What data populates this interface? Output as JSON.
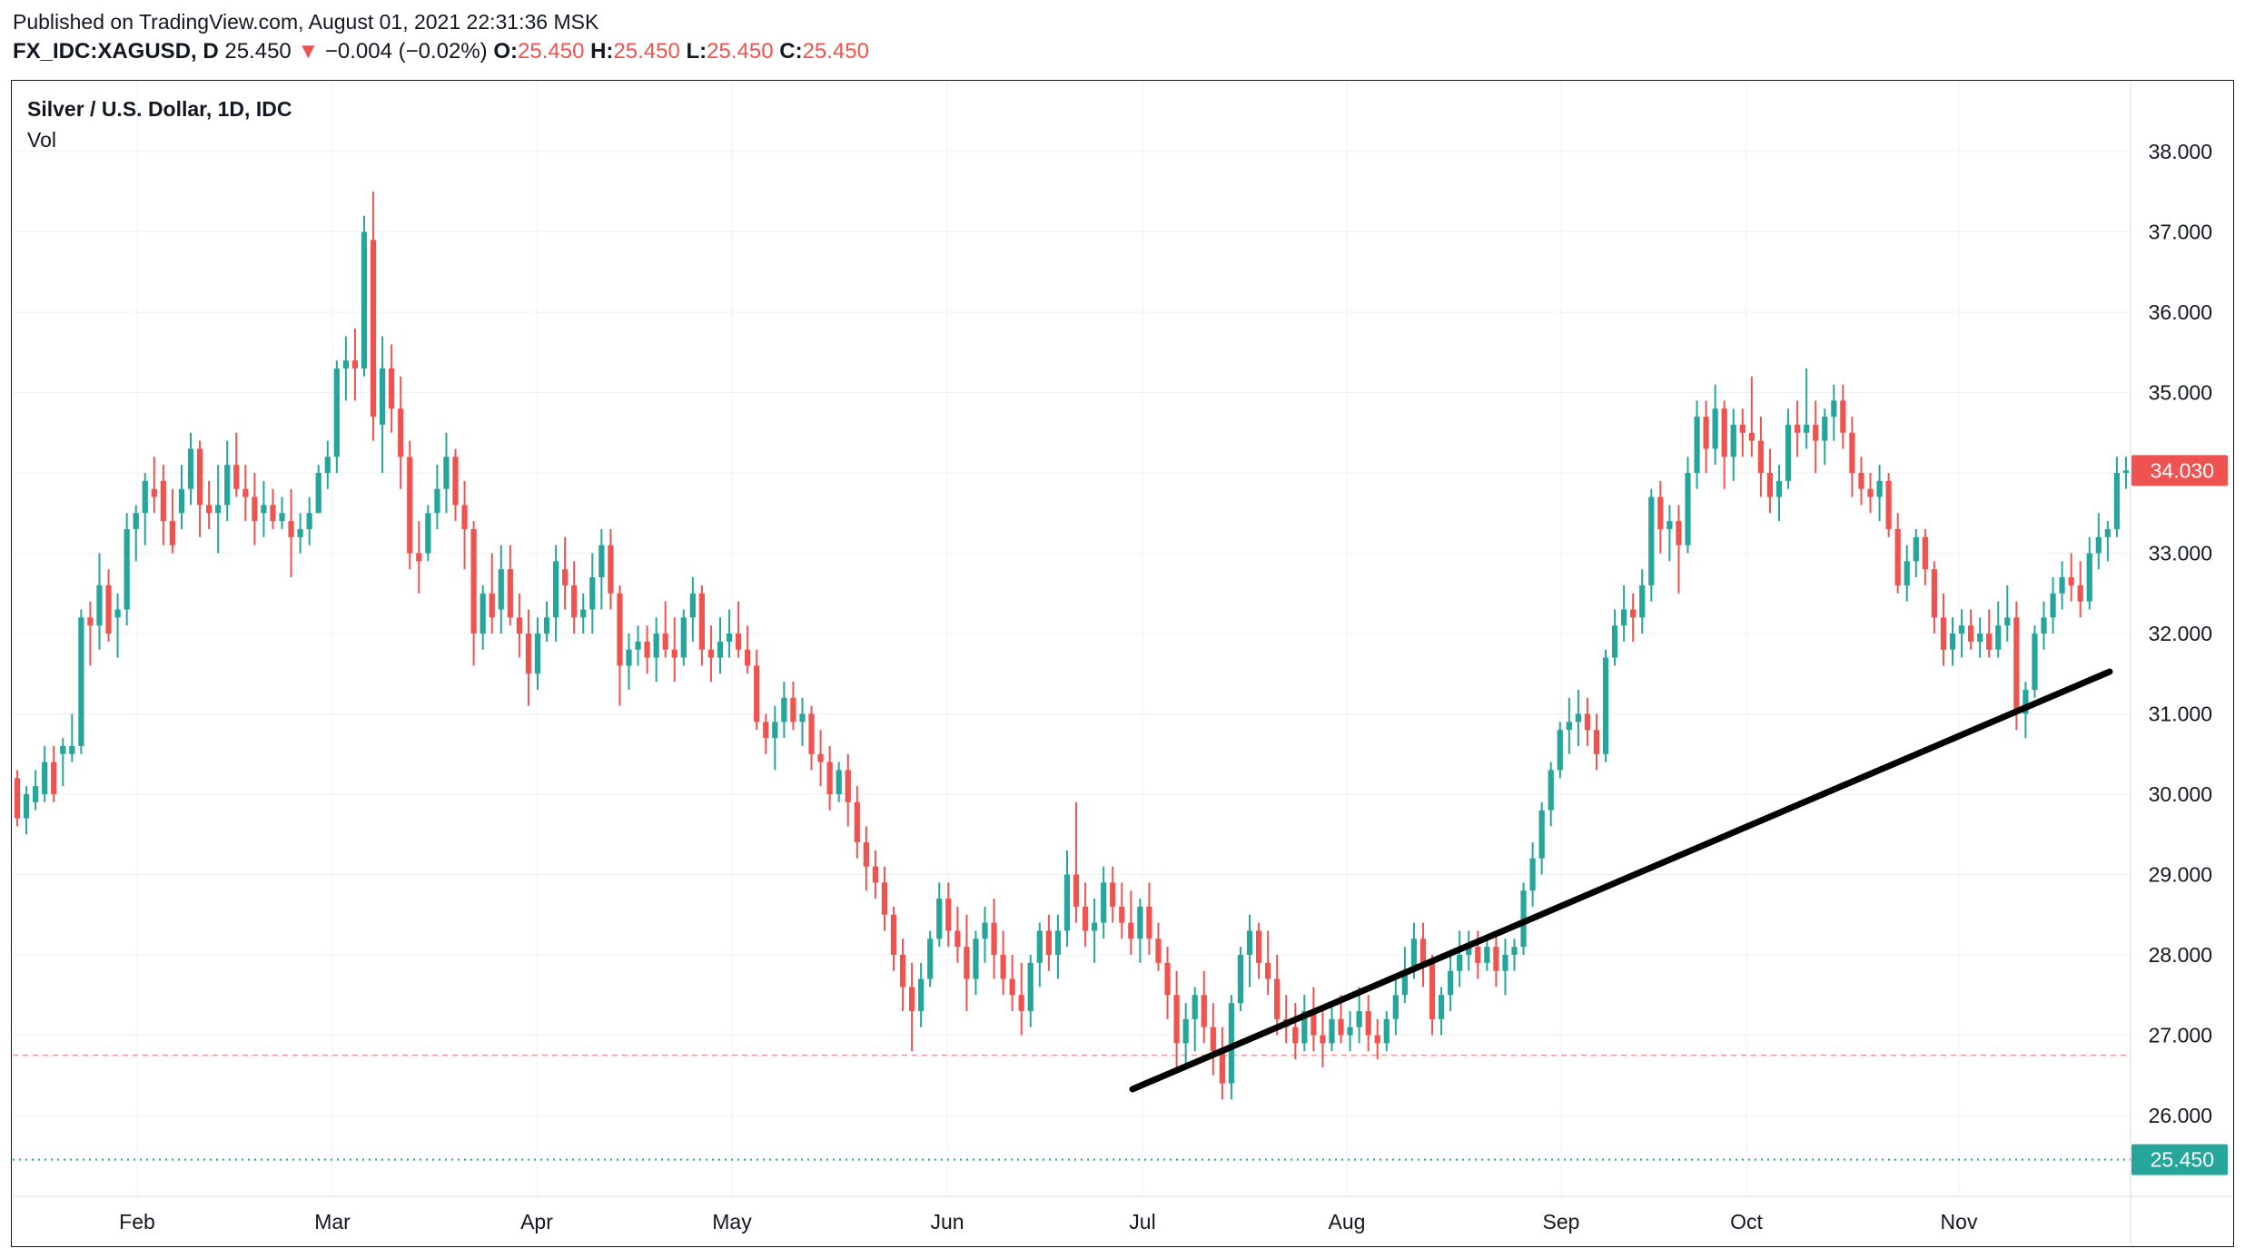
{
  "header": {
    "published": "Published on TradingView.com, August 01, 2021 22:31:36 MSK",
    "symbol": "FX_IDC:XAGUSD, D",
    "last": "25.450",
    "arrow": "▼",
    "change": "−0.004 (−0.02%)",
    "o_label": "O:",
    "o_value": "25.450",
    "h_label": "H:",
    "h_value": "25.450",
    "l_label": "L:",
    "l_value": "25.450",
    "c_label": "C:",
    "c_value": "25.450"
  },
  "legend": {
    "title": "Silver / U.S. Dollar, 1D, IDC",
    "vol": "Vol"
  },
  "colors": {
    "up": "#26a69a",
    "down": "#ef5350",
    "trendline": "#000000",
    "grid": "#eef0f3",
    "last_price_bg": "#26a69a",
    "current_price_bg": "#ef5350"
  },
  "chart_data": {
    "type": "candlestick",
    "y_axis": {
      "ticks": [
        "38.000",
        "37.000",
        "36.000",
        "35.000",
        "34.000",
        "33.000",
        "32.000",
        "31.000",
        "30.000",
        "29.000",
        "28.000",
        "27.000",
        "26.000"
      ],
      "range": [
        25.0,
        38.5
      ]
    },
    "x_axis": {
      "ticks": [
        "Feb",
        "Mar",
        "Apr",
        "May",
        "Jun",
        "Jul",
        "Aug",
        "Sep",
        "Oct",
        "Nov"
      ]
    },
    "price_labels": {
      "current": "34.030",
      "last": "25.450"
    },
    "reference_lines": {
      "dashed_level": 26.75,
      "dotted_level": 25.45
    },
    "trendline": {
      "start": [
        "Jul",
        26.33
      ],
      "end": [
        "late Nov",
        31.5
      ]
    },
    "candles": [
      [
        30.2,
        30.3,
        29.6,
        29.7
      ],
      [
        29.7,
        30.1,
        29.5,
        30.0
      ],
      [
        29.9,
        30.3,
        29.8,
        30.1
      ],
      [
        30.0,
        30.6,
        29.9,
        30.4
      ],
      [
        30.4,
        30.6,
        29.9,
        30.0
      ],
      [
        30.5,
        30.7,
        30.1,
        30.6
      ],
      [
        30.5,
        31.0,
        30.4,
        30.6
      ],
      [
        30.6,
        32.3,
        30.5,
        32.2
      ],
      [
        32.2,
        32.4,
        31.6,
        32.1
      ],
      [
        32.1,
        33.0,
        31.8,
        32.6
      ],
      [
        32.6,
        32.8,
        31.9,
        32.0
      ],
      [
        32.2,
        32.5,
        31.7,
        32.3
      ],
      [
        32.3,
        33.5,
        32.1,
        33.3
      ],
      [
        33.3,
        33.6,
        32.9,
        33.5
      ],
      [
        33.5,
        34.0,
        33.1,
        33.9
      ],
      [
        33.8,
        34.2,
        33.5,
        33.7
      ],
      [
        33.9,
        34.1,
        33.1,
        33.4
      ],
      [
        33.4,
        33.8,
        33.0,
        33.1
      ],
      [
        33.5,
        34.1,
        33.3,
        33.8
      ],
      [
        33.8,
        34.5,
        33.6,
        34.3
      ],
      [
        34.3,
        34.4,
        33.2,
        33.6
      ],
      [
        33.6,
        33.9,
        33.3,
        33.5
      ],
      [
        33.5,
        34.1,
        33.0,
        33.6
      ],
      [
        33.6,
        34.4,
        33.4,
        34.1
      ],
      [
        34.1,
        34.5,
        33.7,
        33.8
      ],
      [
        33.8,
        34.1,
        33.4,
        33.7
      ],
      [
        33.7,
        34.0,
        33.1,
        33.4
      ],
      [
        33.5,
        33.9,
        33.2,
        33.6
      ],
      [
        33.6,
        33.8,
        33.3,
        33.4
      ],
      [
        33.4,
        33.7,
        33.3,
        33.5
      ],
      [
        33.4,
        33.8,
        32.7,
        33.2
      ],
      [
        33.2,
        33.5,
        33.0,
        33.3
      ],
      [
        33.3,
        33.7,
        33.1,
        33.5
      ],
      [
        33.5,
        34.1,
        33.5,
        34.0
      ],
      [
        34.0,
        34.4,
        33.8,
        34.2
      ],
      [
        34.2,
        35.4,
        34.0,
        35.3
      ],
      [
        35.3,
        35.7,
        34.9,
        35.4
      ],
      [
        35.4,
        35.8,
        34.9,
        35.3
      ],
      [
        35.3,
        37.2,
        35.2,
        37.0
      ],
      [
        36.9,
        37.5,
        34.4,
        34.7
      ],
      [
        34.6,
        35.7,
        34.0,
        35.3
      ],
      [
        35.3,
        35.6,
        34.5,
        34.8
      ],
      [
        34.8,
        35.2,
        33.8,
        34.2
      ],
      [
        34.2,
        34.4,
        32.8,
        33.0
      ],
      [
        33.0,
        33.4,
        32.5,
        32.9
      ],
      [
        33.0,
        33.6,
        32.9,
        33.5
      ],
      [
        33.5,
        34.1,
        33.3,
        33.8
      ],
      [
        33.8,
        34.5,
        33.5,
        34.2
      ],
      [
        34.2,
        34.3,
        33.4,
        33.6
      ],
      [
        33.6,
        33.9,
        32.8,
        33.3
      ],
      [
        33.3,
        33.4,
        31.6,
        32.0
      ],
      [
        32.0,
        32.6,
        31.8,
        32.5
      ],
      [
        32.5,
        33.0,
        32.0,
        32.2
      ],
      [
        32.3,
        33.1,
        32.0,
        32.8
      ],
      [
        32.8,
        33.1,
        32.1,
        32.2
      ],
      [
        32.2,
        32.5,
        31.7,
        32.0
      ],
      [
        32.0,
        32.3,
        31.1,
        31.5
      ],
      [
        31.5,
        32.2,
        31.3,
        32.0
      ],
      [
        32.0,
        32.4,
        31.9,
        32.2
      ],
      [
        32.2,
        33.1,
        31.9,
        32.9
      ],
      [
        32.8,
        33.2,
        32.3,
        32.6
      ],
      [
        32.6,
        32.9,
        32.0,
        32.2
      ],
      [
        32.2,
        32.5,
        32.0,
        32.3
      ],
      [
        32.3,
        33.0,
        32.0,
        32.7
      ],
      [
        32.7,
        33.3,
        32.3,
        33.1
      ],
      [
        33.1,
        33.3,
        32.3,
        32.5
      ],
      [
        32.5,
        32.6,
        31.1,
        31.6
      ],
      [
        31.6,
        32.0,
        31.3,
        31.8
      ],
      [
        31.8,
        32.1,
        31.6,
        31.9
      ],
      [
        31.9,
        32.1,
        31.5,
        31.7
      ],
      [
        31.7,
        32.2,
        31.4,
        32.0
      ],
      [
        32.0,
        32.4,
        31.7,
        31.8
      ],
      [
        31.8,
        32.2,
        31.4,
        31.7
      ],
      [
        31.7,
        32.3,
        31.6,
        32.2
      ],
      [
        32.2,
        32.7,
        31.9,
        32.5
      ],
      [
        32.5,
        32.6,
        31.6,
        31.8
      ],
      [
        31.8,
        32.1,
        31.4,
        31.7
      ],
      [
        31.7,
        32.2,
        31.5,
        31.9
      ],
      [
        31.9,
        32.3,
        31.7,
        32.0
      ],
      [
        32.0,
        32.4,
        31.7,
        31.8
      ],
      [
        31.8,
        32.1,
        31.5,
        31.6
      ],
      [
        31.6,
        31.8,
        30.8,
        30.9
      ],
      [
        30.9,
        31.0,
        30.5,
        30.7
      ],
      [
        30.7,
        31.1,
        30.3,
        30.9
      ],
      [
        30.9,
        31.4,
        30.7,
        31.2
      ],
      [
        31.2,
        31.4,
        30.8,
        30.9
      ],
      [
        30.9,
        31.2,
        30.6,
        31.0
      ],
      [
        31.0,
        31.1,
        30.3,
        30.5
      ],
      [
        30.5,
        30.8,
        30.1,
        30.4
      ],
      [
        30.4,
        30.6,
        29.8,
        30.0
      ],
      [
        30.0,
        30.4,
        29.9,
        30.3
      ],
      [
        30.3,
        30.5,
        29.6,
        29.9
      ],
      [
        29.9,
        30.1,
        29.2,
        29.4
      ],
      [
        29.4,
        29.6,
        28.8,
        29.1
      ],
      [
        29.1,
        29.3,
        28.7,
        28.9
      ],
      [
        28.9,
        29.1,
        28.3,
        28.5
      ],
      [
        28.5,
        28.6,
        27.8,
        28.0
      ],
      [
        28.0,
        28.2,
        27.3,
        27.6
      ],
      [
        27.6,
        27.9,
        26.8,
        27.3
      ],
      [
        27.3,
        27.9,
        27.1,
        27.7
      ],
      [
        27.7,
        28.3,
        27.6,
        28.2
      ],
      [
        28.2,
        28.9,
        28.1,
        28.7
      ],
      [
        28.7,
        28.9,
        28.1,
        28.3
      ],
      [
        28.3,
        28.6,
        27.9,
        28.1
      ],
      [
        28.1,
        28.5,
        27.3,
        27.7
      ],
      [
        27.7,
        28.3,
        27.5,
        28.2
      ],
      [
        28.2,
        28.6,
        27.9,
        28.4
      ],
      [
        28.4,
        28.7,
        27.7,
        28.0
      ],
      [
        28.0,
        28.3,
        27.5,
        27.7
      ],
      [
        27.7,
        28.0,
        27.3,
        27.5
      ],
      [
        27.5,
        27.9,
        27.0,
        27.3
      ],
      [
        27.3,
        28.0,
        27.1,
        27.9
      ],
      [
        27.9,
        28.4,
        27.6,
        28.3
      ],
      [
        28.3,
        28.5,
        27.8,
        28.0
      ],
      [
        28.0,
        28.5,
        27.7,
        28.3
      ],
      [
        28.3,
        29.3,
        28.1,
        29.0
      ],
      [
        29.0,
        29.9,
        28.4,
        28.6
      ],
      [
        28.6,
        28.9,
        28.1,
        28.3
      ],
      [
        28.3,
        28.7,
        27.9,
        28.4
      ],
      [
        28.4,
        29.1,
        28.2,
        28.9
      ],
      [
        28.9,
        29.1,
        28.4,
        28.6
      ],
      [
        28.6,
        28.9,
        28.2,
        28.4
      ],
      [
        28.4,
        28.8,
        28.0,
        28.2
      ],
      [
        28.2,
        28.7,
        27.9,
        28.6
      ],
      [
        28.6,
        28.9,
        28.0,
        28.2
      ],
      [
        28.2,
        28.4,
        27.8,
        27.9
      ],
      [
        27.9,
        28.1,
        27.2,
        27.5
      ],
      [
        27.5,
        27.8,
        26.6,
        26.9
      ],
      [
        26.9,
        27.4,
        26.6,
        27.2
      ],
      [
        27.2,
        27.6,
        26.8,
        27.5
      ],
      [
        27.5,
        27.8,
        26.9,
        27.1
      ],
      [
        27.1,
        27.4,
        26.5,
        26.8
      ],
      [
        26.8,
        27.1,
        26.2,
        26.4
      ],
      [
        26.4,
        27.5,
        26.2,
        27.4
      ],
      [
        27.4,
        28.1,
        27.3,
        28.0
      ],
      [
        28.0,
        28.5,
        27.6,
        28.3
      ],
      [
        28.3,
        28.4,
        27.7,
        27.9
      ],
      [
        27.9,
        28.3,
        27.5,
        27.7
      ],
      [
        27.7,
        28.0,
        27.0,
        27.2
      ],
      [
        27.2,
        27.5,
        26.9,
        27.1
      ],
      [
        27.1,
        27.4,
        26.7,
        26.9
      ],
      [
        26.9,
        27.5,
        26.8,
        27.3
      ],
      [
        27.3,
        27.6,
        26.8,
        27.0
      ],
      [
        27.0,
        27.3,
        26.6,
        26.9
      ],
      [
        26.9,
        27.4,
        26.8,
        27.2
      ],
      [
        27.2,
        27.5,
        26.9,
        27.0
      ],
      [
        27.0,
        27.3,
        26.8,
        27.1
      ],
      [
        27.1,
        27.6,
        26.9,
        27.3
      ],
      [
        27.3,
        27.5,
        26.8,
        27.0
      ],
      [
        27.0,
        27.2,
        26.7,
        26.9
      ],
      [
        26.9,
        27.3,
        26.8,
        27.2
      ],
      [
        27.2,
        27.7,
        27.0,
        27.5
      ],
      [
        27.5,
        28.1,
        27.4,
        27.8
      ],
      [
        27.8,
        28.4,
        27.7,
        28.2
      ],
      [
        28.2,
        28.4,
        27.6,
        27.9
      ],
      [
        27.9,
        28.0,
        27.0,
        27.2
      ],
      [
        27.2,
        27.6,
        27.0,
        27.5
      ],
      [
        27.5,
        28.0,
        27.3,
        27.8
      ],
      [
        27.8,
        28.3,
        27.6,
        28.0
      ],
      [
        28.0,
        28.3,
        27.8,
        28.1
      ],
      [
        28.1,
        28.3,
        27.7,
        27.9
      ],
      [
        27.9,
        28.2,
        27.8,
        28.1
      ],
      [
        28.1,
        28.3,
        27.6,
        27.8
      ],
      [
        27.8,
        28.2,
        27.5,
        28.0
      ],
      [
        28.0,
        28.2,
        27.8,
        28.1
      ],
      [
        28.1,
        28.9,
        28.0,
        28.8
      ],
      [
        28.8,
        29.4,
        28.6,
        29.2
      ],
      [
        29.2,
        29.9,
        29.0,
        29.8
      ],
      [
        29.8,
        30.4,
        29.6,
        30.3
      ],
      [
        30.3,
        30.9,
        30.2,
        30.8
      ],
      [
        30.8,
        31.2,
        30.5,
        30.9
      ],
      [
        30.9,
        31.3,
        30.6,
        31.0
      ],
      [
        31.0,
        31.2,
        30.6,
        30.8
      ],
      [
        30.8,
        31.0,
        30.3,
        30.5
      ],
      [
        30.5,
        31.8,
        30.4,
        31.7
      ],
      [
        31.7,
        32.3,
        31.6,
        32.1
      ],
      [
        32.1,
        32.6,
        31.9,
        32.3
      ],
      [
        32.3,
        32.5,
        31.9,
        32.2
      ],
      [
        32.2,
        32.8,
        32.0,
        32.6
      ],
      [
        32.6,
        33.8,
        32.4,
        33.7
      ],
      [
        33.7,
        33.9,
        33.0,
        33.3
      ],
      [
        33.3,
        33.6,
        32.9,
        33.4
      ],
      [
        33.4,
        33.6,
        32.5,
        33.1
      ],
      [
        33.1,
        34.2,
        33.0,
        34.0
      ],
      [
        34.0,
        34.9,
        33.8,
        34.7
      ],
      [
        34.7,
        34.9,
        34.0,
        34.3
      ],
      [
        34.3,
        35.1,
        34.1,
        34.8
      ],
      [
        34.8,
        34.9,
        33.8,
        34.2
      ],
      [
        34.2,
        34.8,
        33.9,
        34.6
      ],
      [
        34.6,
        34.8,
        34.2,
        34.5
      ],
      [
        34.5,
        35.2,
        34.2,
        34.4
      ],
      [
        34.4,
        34.7,
        33.7,
        34.0
      ],
      [
        34.0,
        34.3,
        33.5,
        33.7
      ],
      [
        33.7,
        34.1,
        33.4,
        33.9
      ],
      [
        33.9,
        34.8,
        33.8,
        34.6
      ],
      [
        34.6,
        34.9,
        34.2,
        34.5
      ],
      [
        34.5,
        35.3,
        34.3,
        34.6
      ],
      [
        34.6,
        34.9,
        34.0,
        34.4
      ],
      [
        34.4,
        34.8,
        34.1,
        34.7
      ],
      [
        34.7,
        35.1,
        34.4,
        34.9
      ],
      [
        34.9,
        35.1,
        34.3,
        34.5
      ],
      [
        34.5,
        34.7,
        33.7,
        34.0
      ],
      [
        34.0,
        34.2,
        33.6,
        33.8
      ],
      [
        33.8,
        34.0,
        33.5,
        33.7
      ],
      [
        33.7,
        34.1,
        33.4,
        33.9
      ],
      [
        33.9,
        34.0,
        33.2,
        33.3
      ],
      [
        33.3,
        33.5,
        32.5,
        32.6
      ],
      [
        32.6,
        33.1,
        32.4,
        32.9
      ],
      [
        32.9,
        33.3,
        32.7,
        33.2
      ],
      [
        33.2,
        33.3,
        32.6,
        32.8
      ],
      [
        32.8,
        32.9,
        32.0,
        32.2
      ],
      [
        32.2,
        32.5,
        31.6,
        31.8
      ],
      [
        31.8,
        32.2,
        31.6,
        32.0
      ],
      [
        32.0,
        32.3,
        31.7,
        32.1
      ],
      [
        32.1,
        32.3,
        31.8,
        31.9
      ],
      [
        31.9,
        32.2,
        31.7,
        32.0
      ],
      [
        32.0,
        32.3,
        31.7,
        31.8
      ],
      [
        31.8,
        32.4,
        31.7,
        32.1
      ],
      [
        32.1,
        32.6,
        31.9,
        32.2
      ],
      [
        32.2,
        32.4,
        30.8,
        31.0
      ],
      [
        31.0,
        31.4,
        30.7,
        31.3
      ],
      [
        31.3,
        32.1,
        31.2,
        32.0
      ],
      [
        32.0,
        32.4,
        31.8,
        32.2
      ],
      [
        32.2,
        32.7,
        32.0,
        32.5
      ],
      [
        32.5,
        32.9,
        32.3,
        32.7
      ],
      [
        32.7,
        33.0,
        32.4,
        32.6
      ],
      [
        32.6,
        32.9,
        32.2,
        32.4
      ],
      [
        32.4,
        33.2,
        32.3,
        33.0
      ],
      [
        33.0,
        33.5,
        32.8,
        33.2
      ],
      [
        33.2,
        33.4,
        32.9,
        33.3
      ],
      [
        33.3,
        34.2,
        33.2,
        34.0
      ],
      [
        34.0,
        34.2,
        33.8,
        34.03
      ]
    ]
  }
}
